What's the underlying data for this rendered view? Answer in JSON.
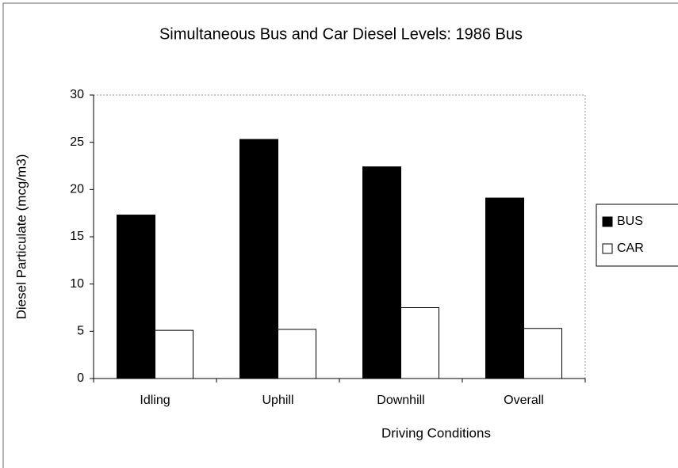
{
  "chart_data": {
    "type": "bar",
    "title": "Simultaneous Bus and Car Diesel Levels: 1986 Bus",
    "x_label": "Driving Conditions",
    "y_label": "Diesel Particulate (mcg/m3)",
    "categories": [
      "Idling",
      "Uphill",
      "Downhill",
      "Overall"
    ],
    "series": [
      {
        "name": "BUS",
        "color": "#000000",
        "values": [
          17.3,
          25.3,
          22.4,
          19.1
        ]
      },
      {
        "name": "CAR",
        "color": "#ffffff",
        "values": [
          5.1,
          5.2,
          7.5,
          5.3
        ]
      }
    ],
    "ylim": [
      0,
      30
    ],
    "yticks": [
      0,
      5,
      10,
      15,
      20,
      25,
      30
    ],
    "grid": false,
    "legend": "right"
  }
}
